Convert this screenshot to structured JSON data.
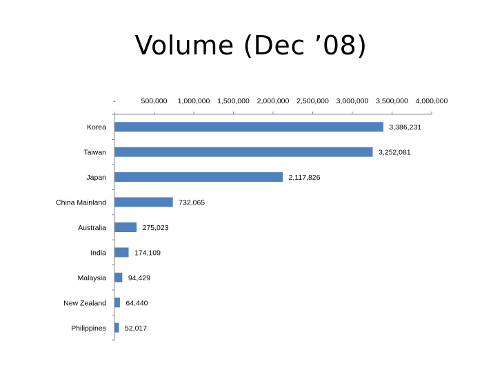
{
  "title": "Volume (Dec ’08)",
  "chart_data": {
    "type": "bar",
    "orientation": "horizontal",
    "title": "Volume (Dec ’08)",
    "categories": [
      "Korea",
      "Taiwan",
      "Japan",
      "China Mainland",
      "Australia",
      "India",
      "Malaysia",
      "New Zealand",
      "Philippines"
    ],
    "values": [
      3386231,
      3252081,
      2117826,
      732065,
      275023,
      174109,
      94429,
      64440,
      52017
    ],
    "data_labels": [
      "3,386,231",
      "3,252,081",
      "2,117,826",
      "732,065",
      "275,023",
      "174,109",
      "94,429",
      "64,440",
      "52,017"
    ],
    "xlim": [
      0,
      4000000
    ],
    "x_ticks": [
      0,
      500000,
      1000000,
      1500000,
      2000000,
      2500000,
      3000000,
      3500000,
      4000000
    ],
    "x_tick_labels": [
      "-",
      "500,000",
      "1,000,000",
      "1,500,000",
      "2,000,000",
      "2,500,000",
      "3,000,000",
      "3,500,000",
      "4,000,000"
    ],
    "x_axis_position": "top",
    "grid": false,
    "legend": "none",
    "bar_color": "#4F81BD"
  }
}
